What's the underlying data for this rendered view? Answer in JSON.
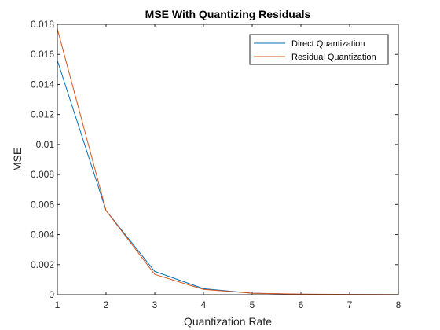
{
  "chart_data": {
    "type": "line",
    "title": "MSE With Quantizing Residuals",
    "xlabel": "Quantization Rate",
    "ylabel": "MSE",
    "xlim": [
      1,
      8
    ],
    "ylim": [
      0,
      0.018
    ],
    "x_ticks": [
      "1",
      "2",
      "3",
      "4",
      "5",
      "6",
      "7",
      "8"
    ],
    "y_ticks": [
      "0",
      "0.002",
      "0.004",
      "0.006",
      "0.008",
      "0.01",
      "0.012",
      "0.014",
      "0.016",
      "0.018"
    ],
    "grid": false,
    "legend_position": "top-right",
    "x": [
      1,
      2,
      3,
      4,
      5,
      6,
      7,
      8
    ],
    "series": [
      {
        "name": "Direct Quantization",
        "color": "#0072BD",
        "values": [
          0.0156,
          0.0056,
          0.00155,
          0.0004,
          0.0001,
          3e-05,
          1e-05,
          3e-06
        ]
      },
      {
        "name": "Residual Quantization",
        "color": "#D95319",
        "values": [
          0.0177,
          0.0056,
          0.00135,
          0.00035,
          0.0001,
          4e-05,
          2e-05,
          1e-05
        ]
      }
    ]
  }
}
